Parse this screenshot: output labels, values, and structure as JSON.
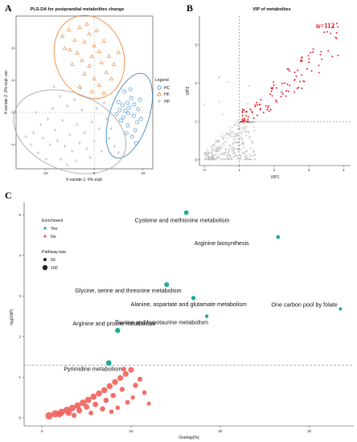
{
  "panelA": {
    "letter": "A",
    "title": "PLS-DA for postprandial metabolites change",
    "xlabel": "X-variate 1: 6% expl.",
    "ylabel": "X-variate 2: 2% expl. var",
    "legend_title": "Legend",
    "colors": {
      "HC": "#3f88c5",
      "HF": "#f08a3c",
      "HP": "#a8a8a8"
    },
    "chart_data": {
      "type": "scatter",
      "xlim": [
        -16,
        12
      ],
      "ylim": [
        -7,
        12
      ],
      "xticks": [
        -10,
        0,
        10
      ],
      "yticks": [
        -4,
        0,
        4,
        8
      ],
      "series": [
        {
          "name": "HC",
          "marker": "circle",
          "points": [
            [
              5.8,
              0.9
            ],
            [
              6.4,
              0.2
            ],
            [
              7.2,
              0.6
            ],
            [
              8.1,
              -0.4
            ],
            [
              5.5,
              -1.0
            ],
            [
              6.9,
              -1.6
            ],
            [
              8.4,
              -2.2
            ],
            [
              7.6,
              1.8
            ],
            [
              9.0,
              0.4
            ],
            [
              6.2,
              2.6
            ],
            [
              5.0,
              1.3
            ],
            [
              8.8,
              -1.2
            ],
            [
              7.0,
              -0.1
            ],
            [
              6.0,
              -0.6
            ],
            [
              9.6,
              -0.8
            ],
            [
              7.8,
              -3.0
            ],
            [
              8.6,
              -3.8
            ],
            [
              5.2,
              0.3
            ],
            [
              6.8,
              1.2
            ],
            [
              7.4,
              2.9
            ],
            [
              4.6,
              -0.2
            ],
            [
              8.2,
              1.0
            ],
            [
              9.4,
              1.6
            ],
            [
              6.6,
              -2.6
            ]
          ]
        },
        {
          "name": "HF",
          "marker": "triangle",
          "points": [
            [
              -6.5,
              9.5
            ],
            [
              -5.2,
              10.3
            ],
            [
              -4.0,
              9.0
            ],
            [
              -3.0,
              10.6
            ],
            [
              -2.0,
              8.8
            ],
            [
              -1.0,
              9.8
            ],
            [
              0.0,
              8.3
            ],
            [
              1.0,
              7.6
            ],
            [
              2.0,
              8.9
            ],
            [
              -0.5,
              7.0
            ],
            [
              -3.5,
              7.4
            ],
            [
              -2.5,
              6.5
            ],
            [
              1.5,
              6.2
            ],
            [
              3.0,
              7.0
            ],
            [
              0.5,
              10.2
            ],
            [
              -1.5,
              11.0
            ],
            [
              -5.0,
              7.8
            ],
            [
              -4.5,
              6.0
            ],
            [
              -1.0,
              5.8
            ],
            [
              2.5,
              5.0
            ],
            [
              0.0,
              4.2
            ],
            [
              -2.0,
              4.8
            ],
            [
              4.0,
              6.0
            ],
            [
              3.5,
              4.2
            ],
            [
              1.0,
              3.4
            ],
            [
              -3.0,
              3.2
            ],
            [
              -0.5,
              2.6
            ],
            [
              2.0,
              2.4
            ],
            [
              5.0,
              7.5
            ],
            [
              -6.0,
              8.0
            ]
          ]
        },
        {
          "name": "HP",
          "marker": "plus",
          "points": [
            [
              -11.0,
              -1.5
            ],
            [
              -9.5,
              -0.8
            ],
            [
              -8.0,
              -2.2
            ],
            [
              -6.5,
              -1.0
            ],
            [
              -5.0,
              -2.8
            ],
            [
              -3.5,
              -1.5
            ],
            [
              -2.0,
              -2.5
            ],
            [
              -0.5,
              -1.2
            ],
            [
              1.0,
              -2.0
            ],
            [
              2.5,
              -0.8
            ],
            [
              -10.5,
              -3.2
            ],
            [
              -9.0,
              -4.0
            ],
            [
              -7.5,
              -3.5
            ],
            [
              -6.0,
              -4.2
            ],
            [
              -4.5,
              -4.8
            ],
            [
              -3.0,
              -3.8
            ],
            [
              -1.5,
              -4.5
            ],
            [
              0.0,
              -3.6
            ],
            [
              1.5,
              -4.8
            ],
            [
              3.0,
              -3.2
            ],
            [
              -12.5,
              -2.5
            ],
            [
              -13.0,
              -4.0
            ],
            [
              -11.5,
              -5.0
            ],
            [
              -8.5,
              0.5
            ],
            [
              -5.5,
              0.8
            ],
            [
              -2.5,
              0.3
            ],
            [
              0.5,
              0.5
            ],
            [
              3.5,
              -2.0
            ],
            [
              -7.0,
              2.0
            ],
            [
              -4.0,
              1.6
            ],
            [
              -1.0,
              1.8
            ],
            [
              2.0,
              1.2
            ],
            [
              -9.8,
              -5.8
            ],
            [
              -6.8,
              -5.8
            ],
            [
              -3.8,
              -6.0
            ],
            [
              -0.8,
              -5.6
            ],
            [
              4.2,
              -4.2
            ],
            [
              -14.0,
              -3.0
            ],
            [
              -12.0,
              0.0
            ],
            [
              -2.8,
              3.0
            ],
            [
              5.0,
              -5.0
            ],
            [
              -5.5,
              -6.5
            ],
            [
              -8.2,
              3.2
            ]
          ]
        }
      ],
      "ellipses": [
        {
          "name": "HC",
          "cx": 7.2,
          "cy": -0.4,
          "rx": 4.0,
          "ry": 5.5,
          "rot": 18
        },
        {
          "name": "HF",
          "cx": -1.0,
          "cy": 6.9,
          "rx": 7.0,
          "ry": 5.3,
          "rot": -20
        },
        {
          "name": "HP",
          "cx": -5.0,
          "cy": -2.4,
          "rx": 12.0,
          "ry": 4.8,
          "rot": 22
        }
      ]
    }
  },
  "panelB": {
    "letter": "B",
    "title": "VIP of metabolites",
    "xlabel": "VIP1",
    "ylabel": "VIP2",
    "annotation": "n=112",
    "colors": {
      "significant": "#e8141c",
      "other": "#b3b3b3",
      "threshold": "#555555"
    },
    "chart_data": {
      "type": "scatter",
      "xlim": [
        -0.15,
        4.2
      ],
      "ylim": [
        -0.15,
        3.75
      ],
      "xticks": [
        0,
        1,
        2,
        3,
        4
      ],
      "yticks": [
        0,
        1,
        2,
        3
      ],
      "threshold_x": 1,
      "threshold_y": 1,
      "generated_points": {
        "significant_count": 112,
        "other_count": 320
      }
    }
  },
  "panelC": {
    "letter": "C",
    "xlabel": "Overlap(%)",
    "ylabel": "-log10(P)",
    "legend": {
      "enrichment_title": "Enrichment",
      "enrichment_items": [
        {
          "label": "Yes",
          "color": "#1fa99b"
        },
        {
          "label": "No",
          "color": "#f0605a"
        }
      ],
      "size_title": "Pathway.size",
      "size_items": [
        "50",
        "100"
      ]
    },
    "chart_data": {
      "type": "scatter",
      "xlim": [
        -2,
        35
      ],
      "ylim": [
        -0.2,
        5.3
      ],
      "xticks": [
        0,
        10,
        20,
        30
      ],
      "yticks": [
        0,
        1,
        2,
        3,
        4,
        5
      ],
      "threshold_y": 1.3,
      "labeled": [
        {
          "label": "Cysteine and methionine metabolism",
          "x": 16.2,
          "y": 5.05,
          "enriched": true,
          "size": 50
        },
        {
          "label": "Arginine biosynthesis",
          "x": 26.5,
          "y": 4.45,
          "enriched": true,
          "size": 30
        },
        {
          "label": "Glycine, serine and threonine metabolism",
          "x": 14.0,
          "y": 3.28,
          "enriched": true,
          "size": 60
        },
        {
          "label": "Alanine, aspartate and glutamate metabolism",
          "x": 17.0,
          "y": 2.95,
          "enriched": true,
          "size": 40
        },
        {
          "label": "One carbon pool by folate",
          "x": 33.5,
          "y": 2.68,
          "enriched": true,
          "size": 20
        },
        {
          "label": "Taurine and hypotaurine metabolism",
          "x": 18.5,
          "y": 2.5,
          "enriched": true,
          "size": 25
        },
        {
          "label": "Arginine and proline metabolism",
          "x": 8.5,
          "y": 2.15,
          "enriched": true,
          "size": 70
        },
        {
          "label": "Pyrimidine metabolism",
          "x": 7.5,
          "y": 1.35,
          "enriched": true,
          "size": 80
        }
      ],
      "others": [
        [
          0.8,
          0.05,
          100
        ],
        [
          1.5,
          0.1,
          95
        ],
        [
          2.2,
          0.14,
          85
        ],
        [
          2.8,
          0.19,
          80
        ],
        [
          3.4,
          0.24,
          75
        ],
        [
          4.0,
          0.3,
          72
        ],
        [
          4.6,
          0.37,
          70
        ],
        [
          5.2,
          0.44,
          68
        ],
        [
          5.8,
          0.52,
          65
        ],
        [
          6.4,
          0.6,
          62
        ],
        [
          7.0,
          0.68,
          60
        ],
        [
          7.6,
          0.78,
          58
        ],
        [
          8.2,
          0.88,
          56
        ],
        [
          8.8,
          0.98,
          54
        ],
        [
          9.4,
          1.08,
          52
        ],
        [
          10.0,
          1.18,
          50
        ],
        [
          3.0,
          0.12,
          60
        ],
        [
          4.2,
          0.18,
          55
        ],
        [
          5.0,
          0.27,
          50
        ],
        [
          6.0,
          0.33,
          45
        ],
        [
          7.2,
          0.43,
          42
        ],
        [
          8.0,
          0.55,
          40
        ],
        [
          9.0,
          0.7,
          38
        ],
        [
          10.5,
          0.8,
          36
        ],
        [
          11.0,
          0.95,
          34
        ],
        [
          2.0,
          0.08,
          45
        ],
        [
          6.8,
          0.22,
          40
        ],
        [
          9.6,
          0.38,
          30
        ],
        [
          11.5,
          0.62,
          28
        ],
        [
          8.5,
          0.25,
          25
        ],
        [
          10.2,
          0.5,
          22
        ],
        [
          12.0,
          0.35,
          20
        ],
        [
          5.5,
          0.12,
          30
        ],
        [
          7.8,
          0.15,
          26
        ],
        [
          3.6,
          0.06,
          35
        ],
        [
          9.2,
          1.2,
          30
        ]
      ]
    }
  }
}
